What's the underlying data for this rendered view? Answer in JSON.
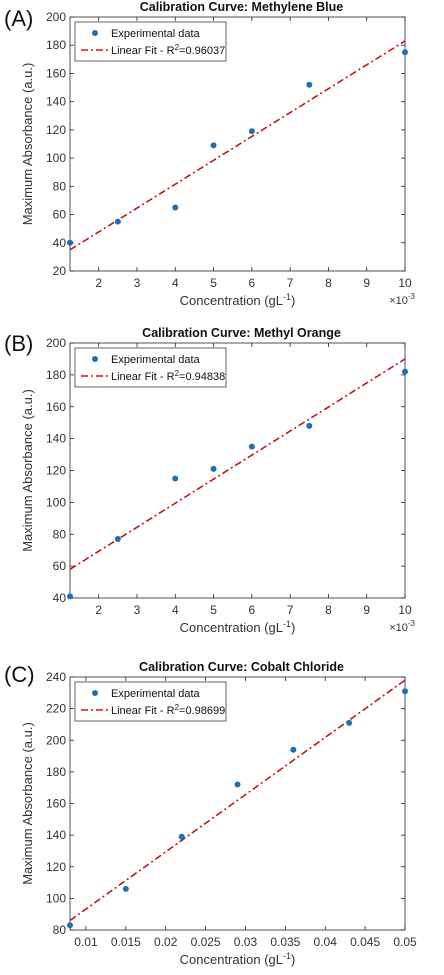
{
  "colors": {
    "marker": "#1f6fb4",
    "fit_line": "#c0191b",
    "axis": "#262626"
  },
  "chart_data": [
    {
      "type": "scatter",
      "panel_label": "(A)",
      "title": "Calibration Curve: Methylene Blue",
      "xlabel": "Concentration (gL",
      "xlabel_sup": "-1",
      "xlabel_close": ")",
      "ylabel": "Maximum Absorbance (a.u.)",
      "x_exponent": "×10",
      "x_exponent_sup": "-3",
      "xlim": [
        1.25,
        10
      ],
      "ylim": [
        20,
        200
      ],
      "xticks": [
        2,
        3,
        4,
        5,
        6,
        7,
        8,
        9,
        10
      ],
      "xtick_labels": [
        "2",
        "3",
        "4",
        "5",
        "6",
        "7",
        "8",
        "9",
        "10"
      ],
      "yticks": [
        20,
        40,
        60,
        80,
        100,
        120,
        140,
        160,
        180,
        200
      ],
      "ytick_labels": [
        "20",
        "40",
        "60",
        "80",
        "100",
        "120",
        "140",
        "160",
        "180",
        "200"
      ],
      "legend": {
        "position": "top-left",
        "data_label": "Experimental data",
        "fit_label": "Linear Fit - R",
        "fit_sup": "2",
        "fit_value": "=0.96037"
      },
      "series": [
        {
          "kind": "points",
          "x": [
            1.25,
            2.5,
            4,
            5,
            6,
            7.5,
            10
          ],
          "y": [
            40,
            55,
            65,
            109,
            119,
            152,
            175
          ]
        },
        {
          "kind": "fit",
          "x": [
            1.25,
            10
          ],
          "y": [
            35,
            183
          ]
        }
      ]
    },
    {
      "type": "scatter",
      "panel_label": "(B)",
      "title": "Calibration Curve: Methyl Orange",
      "xlabel": "Concentration (gL",
      "xlabel_sup": "-1",
      "xlabel_close": ")",
      "ylabel": "Maximum Absorbance (a.u.)",
      "x_exponent": "×10",
      "x_exponent_sup": "-3",
      "xlim": [
        1.25,
        10
      ],
      "ylim": [
        40,
        200
      ],
      "xticks": [
        2,
        3,
        4,
        5,
        6,
        7,
        8,
        9,
        10
      ],
      "xtick_labels": [
        "2",
        "3",
        "4",
        "5",
        "6",
        "7",
        "8",
        "9",
        "10"
      ],
      "yticks": [
        40,
        60,
        80,
        100,
        120,
        140,
        160,
        180,
        200
      ],
      "ytick_labels": [
        "40",
        "60",
        "80",
        "100",
        "120",
        "140",
        "160",
        "180",
        "200"
      ],
      "legend": {
        "position": "top-left",
        "data_label": "Experimental data",
        "fit_label": "Linear Fit - R",
        "fit_sup": "2",
        "fit_value": "=0.94838"
      },
      "series": [
        {
          "kind": "points",
          "x": [
            1.25,
            2.5,
            4,
            5,
            6,
            7.5,
            10
          ],
          "y": [
            41,
            77,
            115,
            121,
            135,
            148,
            182
          ]
        },
        {
          "kind": "fit",
          "x": [
            1.25,
            10
          ],
          "y": [
            58,
            190
          ]
        }
      ]
    },
    {
      "type": "scatter",
      "panel_label": "(C)",
      "title": "Calibration Curve: Cobalt Chloride",
      "xlabel": "Concentration (gL",
      "xlabel_sup": "-1",
      "xlabel_close": ")",
      "ylabel": "Maximum Absorbance (a.u.)",
      "x_exponent": "",
      "x_exponent_sup": "",
      "xlim": [
        0.008,
        0.05
      ],
      "ylim": [
        80,
        240
      ],
      "xticks": [
        0.01,
        0.015,
        0.02,
        0.025,
        0.03,
        0.035,
        0.04,
        0.045,
        0.05
      ],
      "xtick_labels": [
        "0.01",
        "0.015",
        "0.02",
        "0.025",
        "0.03",
        "0.035",
        "0.04",
        "0.045",
        "0.05"
      ],
      "yticks": [
        80,
        100,
        120,
        140,
        160,
        180,
        200,
        220,
        240
      ],
      "ytick_labels": [
        "80",
        "100",
        "120",
        "140",
        "160",
        "180",
        "200",
        "220",
        "240"
      ],
      "legend": {
        "position": "top-left",
        "data_label": "Experimental data",
        "fit_label": "Linear Fit - R",
        "fit_sup": "2",
        "fit_value": "=0.98699"
      },
      "series": [
        {
          "kind": "points",
          "x": [
            0.008,
            0.015,
            0.022,
            0.029,
            0.036,
            0.043,
            0.05
          ],
          "y": [
            83,
            106,
            139,
            172,
            194,
            211,
            231
          ]
        },
        {
          "kind": "fit",
          "x": [
            0.008,
            0.05
          ],
          "y": [
            86,
            238
          ]
        }
      ]
    }
  ]
}
